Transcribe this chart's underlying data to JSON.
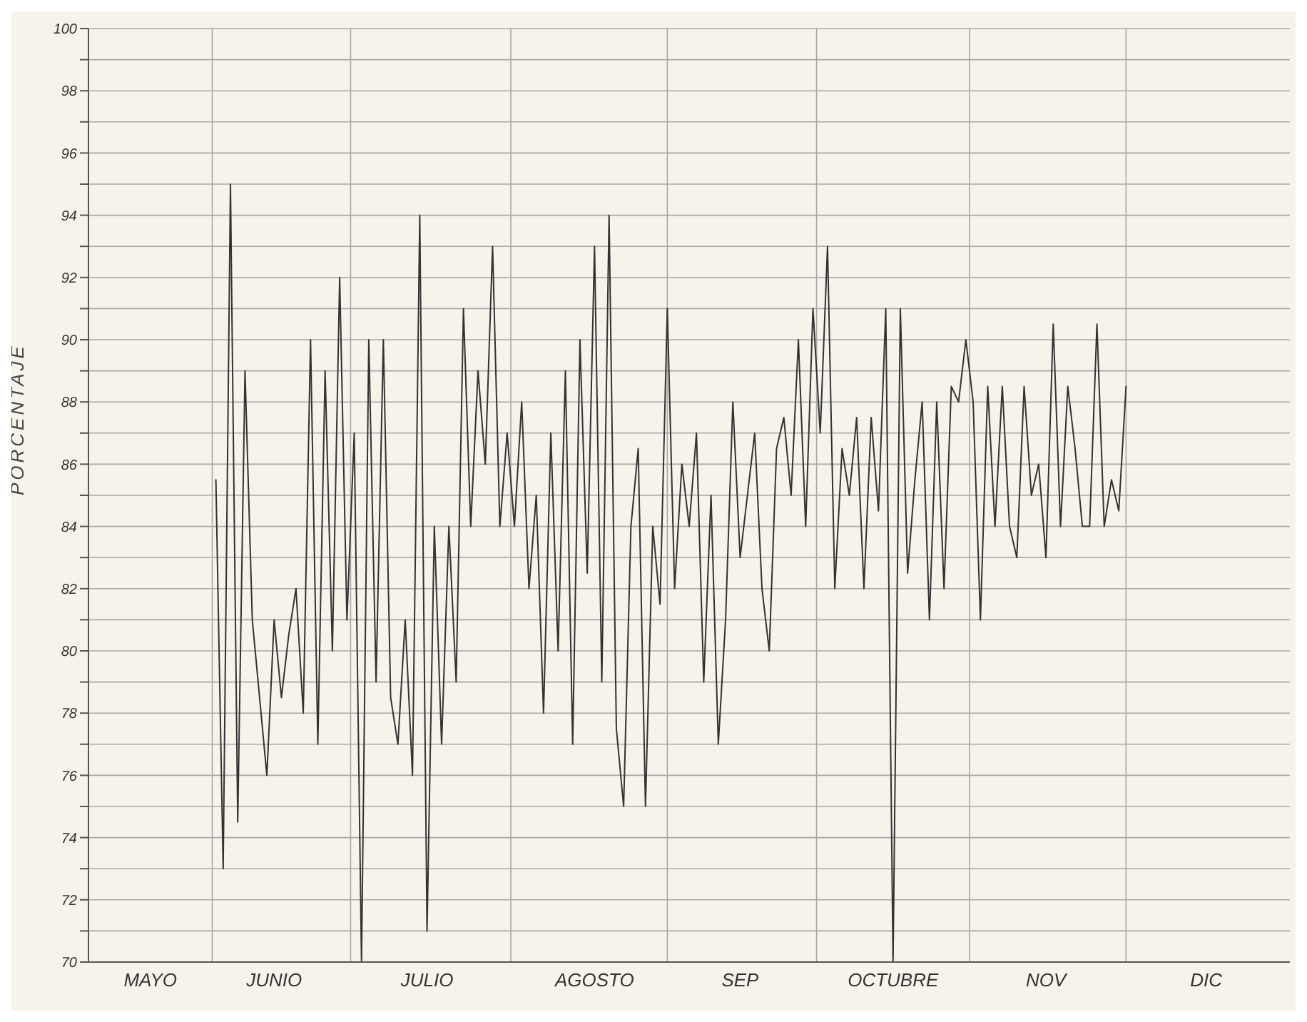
{
  "chart_data": {
    "type": "line",
    "ylabel": "PORCENTAJE",
    "color": "#333333",
    "grid": true,
    "legend": false,
    "marker": "none",
    "line_style": "solid",
    "categories": [
      null,
      null,
      null,
      null,
      null,
      null,
      null,
      null,
      "MAYO",
      null,
      null,
      null,
      null,
      null,
      null,
      null,
      null,
      null,
      null,
      null,
      null,
      null,
      null,
      null,
      null,
      "JUNIO",
      null,
      null,
      null,
      null,
      null,
      null,
      null,
      null,
      null,
      null,
      null,
      null,
      null,
      null,
      null,
      null,
      null,
      null,
      null,
      null,
      "JULIO",
      null,
      null,
      null,
      null,
      null,
      null,
      null,
      null,
      null,
      null,
      null,
      null,
      null,
      null,
      null,
      null,
      null,
      null,
      null,
      null,
      null,
      null,
      "AGOSTO",
      null,
      null,
      null,
      null,
      null,
      null,
      null,
      null,
      null,
      null,
      null,
      null,
      null,
      null,
      null,
      null,
      null,
      null,
      null,
      "SEP",
      null,
      null,
      null,
      null,
      null,
      null,
      null,
      null,
      null,
      null,
      null,
      null,
      null,
      null,
      null,
      null,
      null,
      null,
      null,
      null,
      "OCTUBRE",
      null,
      null,
      null,
      null,
      null,
      null,
      null,
      null,
      null,
      null,
      null,
      null,
      null,
      null,
      null,
      null,
      null,
      null,
      null,
      null,
      "NOV",
      null,
      null,
      null,
      null,
      null,
      null,
      null,
      null,
      null,
      null,
      null,
      null,
      null,
      null,
      null,
      null,
      null,
      null,
      null,
      null,
      null,
      "DIC",
      null,
      null,
      null,
      null,
      null,
      null,
      null,
      null,
      null,
      null,
      null
    ],
    "ylim": [
      70,
      100
    ],
    "yticks": [
      70,
      {
        "value": 71,
        "label": null
      },
      72,
      {
        "value": 73,
        "label": null
      },
      74,
      {
        "value": 75,
        "label": null
      },
      76,
      {
        "value": 77,
        "label": null
      },
      78,
      {
        "value": 79,
        "label": null
      },
      80,
      {
        "value": 81,
        "label": null
      },
      82,
      {
        "value": 83,
        "label": null
      },
      84,
      {
        "value": 85,
        "label": null
      },
      86,
      {
        "value": 87,
        "label": null
      },
      88,
      {
        "value": 89,
        "label": null
      },
      90,
      {
        "value": 91,
        "label": null
      },
      92,
      {
        "value": 93,
        "label": null
      },
      94,
      {
        "value": 95,
        "label": null
      },
      96,
      {
        "value": 97,
        "label": null
      },
      98,
      {
        "value": 99,
        "label": null
      },
      100
    ],
    "values": [
      null,
      null,
      null,
      null,
      null,
      null,
      null,
      null,
      null,
      null,
      null,
      null,
      null,
      null,
      null,
      null,
      null,
      85.5,
      73,
      95,
      74.5,
      89,
      81,
      78.5,
      76,
      81,
      78.5,
      80.5,
      82,
      78,
      90,
      77,
      89,
      80,
      92,
      81,
      87,
      70,
      90,
      79,
      90,
      78.5,
      77,
      81,
      76,
      94,
      71,
      84,
      77,
      84,
      79,
      91,
      84,
      89,
      86,
      93,
      84,
      87,
      84,
      88,
      82,
      85,
      78,
      87,
      80,
      89,
      77,
      90,
      82.5,
      93,
      79,
      94,
      77.5,
      75,
      84,
      86.5,
      75,
      84,
      81.5,
      91,
      82,
      86,
      84,
      87,
      79,
      85,
      77,
      81,
      88,
      83,
      85,
      87,
      82,
      80,
      86.5,
      87.5,
      85,
      90,
      84,
      91,
      87,
      93,
      82,
      86.5,
      85,
      87.5,
      82,
      87.5,
      84.5,
      91,
      70,
      91,
      82.5,
      85.5,
      88,
      81,
      88,
      82,
      88.5,
      88,
      90,
      88,
      81,
      88.5,
      84,
      88.5,
      84,
      83,
      88.5,
      85,
      86,
      83,
      90.5,
      84,
      88.5,
      86.5,
      84,
      84,
      90.5,
      84,
      85.5,
      84.5,
      88.5,
      null,
      null,
      null,
      null,
      null,
      null,
      null,
      null,
      null,
      null,
      null,
      null,
      null,
      null,
      null,
      null,
      null,
      null,
      null,
      null,
      null,
      null
    ]
  }
}
